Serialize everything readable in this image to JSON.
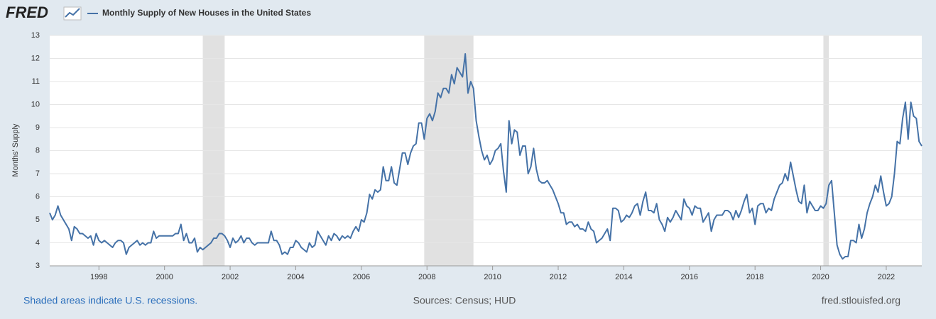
{
  "brand": "FRED",
  "chart_data": {
    "type": "line",
    "y_label": "Months' Supply",
    "series": [
      {
        "name": "Monthly Supply of New Houses in the United States",
        "color": "#4572a7",
        "values": [
          5.3,
          5.0,
          5.2,
          5.6,
          5.2,
          5.0,
          4.8,
          4.6,
          4.1,
          4.7,
          4.6,
          4.4,
          4.4,
          4.3,
          4.2,
          4.3,
          3.9,
          4.4,
          4.1,
          4.0,
          4.1,
          4.0,
          3.9,
          3.8,
          4.0,
          4.1,
          4.1,
          4.0,
          3.5,
          3.8,
          3.9,
          4.0,
          4.1,
          3.9,
          4.0,
          3.9,
          4.0,
          4.0,
          4.5,
          4.2,
          4.3,
          4.3,
          4.3,
          4.3,
          4.3,
          4.3,
          4.4,
          4.4,
          4.8,
          4.1,
          4.4,
          4.0,
          4.0,
          4.2,
          3.6,
          3.8,
          3.7,
          3.8,
          3.9,
          4.0,
          4.2,
          4.2,
          4.4,
          4.4,
          4.3,
          4.1,
          3.8,
          4.2,
          4.0,
          4.1,
          4.3,
          4.0,
          4.2,
          4.2,
          4.0,
          3.9,
          4.0,
          4.0,
          4.0,
          4.0,
          4.0,
          4.5,
          4.1,
          4.1,
          3.9,
          3.5,
          3.6,
          3.5,
          3.8,
          3.8,
          4.1,
          4.0,
          3.8,
          3.7,
          3.6,
          4.0,
          3.8,
          3.9,
          4.5,
          4.3,
          4.1,
          3.9,
          4.3,
          4.1,
          4.4,
          4.3,
          4.1,
          4.3,
          4.2,
          4.3,
          4.2,
          4.5,
          4.7,
          4.5,
          5.0,
          4.9,
          5.3,
          6.1,
          5.9,
          6.3,
          6.2,
          6.3,
          7.3,
          6.7,
          6.7,
          7.3,
          6.6,
          6.5,
          7.2,
          7.9,
          7.9,
          7.4,
          7.9,
          8.2,
          8.3,
          9.2,
          9.2,
          8.5,
          9.4,
          9.6,
          9.3,
          9.7,
          10.5,
          10.3,
          10.7,
          10.7,
          10.5,
          11.3,
          10.9,
          11.6,
          11.4,
          11.2,
          12.2,
          10.5,
          11.0,
          10.7,
          9.3,
          8.6,
          8.0,
          7.6,
          7.8,
          7.4,
          7.6,
          8.0,
          8.1,
          8.3,
          7.1,
          6.2,
          9.3,
          8.3,
          8.9,
          8.8,
          7.8,
          8.2,
          8.2,
          7.0,
          7.3,
          8.1,
          7.2,
          6.7,
          6.6,
          6.6,
          6.7,
          6.5,
          6.3,
          6.0,
          5.7,
          5.3,
          5.3,
          4.8,
          4.9,
          4.9,
          4.7,
          4.8,
          4.6,
          4.6,
          4.5,
          4.9,
          4.6,
          4.5,
          4.0,
          4.1,
          4.2,
          4.4,
          4.6,
          4.1,
          5.5,
          5.5,
          5.4,
          4.9,
          5.0,
          5.2,
          5.1,
          5.3,
          5.6,
          5.7,
          5.2,
          5.8,
          6.2,
          5.4,
          5.4,
          5.3,
          5.7,
          5.0,
          4.8,
          4.5,
          5.1,
          4.9,
          5.1,
          5.4,
          5.2,
          5.0,
          5.9,
          5.6,
          5.5,
          5.2,
          5.6,
          5.5,
          5.5,
          4.9,
          5.1,
          5.3,
          4.5,
          5.0,
          5.2,
          5.2,
          5.2,
          5.4,
          5.4,
          5.3,
          5.0,
          5.4,
          5.1,
          5.4,
          5.8,
          6.1,
          5.3,
          5.5,
          4.8,
          5.6,
          5.7,
          5.7,
          5.3,
          5.5,
          5.4,
          5.9,
          6.2,
          6.5,
          6.6,
          7.0,
          6.7,
          7.5,
          6.9,
          6.3,
          5.8,
          5.7,
          6.5,
          5.3,
          5.8,
          5.6,
          5.4,
          5.4,
          5.6,
          5.5,
          5.7,
          6.5,
          6.7,
          5.3,
          3.9,
          3.5,
          3.3,
          3.4,
          3.4,
          4.1,
          4.1,
          4.0,
          4.8,
          4.2,
          4.6,
          5.3,
          5.7,
          6.0,
          6.5,
          6.2,
          6.9,
          6.2,
          5.6,
          5.7,
          6.0,
          7.0,
          8.4,
          8.3,
          9.4,
          10.1,
          8.5,
          10.1,
          9.5,
          9.4,
          8.4,
          8.2
        ]
      }
    ],
    "x": [
      "1996-07",
      "1996-08",
      "1996-09",
      "1996-10",
      "1996-11",
      "1996-12",
      "1997-01",
      "1997-02",
      "1997-03",
      "1997-04",
      "1997-05",
      "1997-06",
      "1997-07",
      "1997-08",
      "1997-09",
      "1997-10",
      "1997-11",
      "1997-12",
      "1998-01",
      "1998-02",
      "1998-03",
      "1998-04",
      "1998-05",
      "1998-06",
      "1998-07",
      "1998-08",
      "1998-09",
      "1998-10",
      "1998-11",
      "1998-12",
      "1999-01",
      "1999-02",
      "1999-03",
      "1999-04",
      "1999-05",
      "1999-06",
      "1999-07",
      "1999-08",
      "1999-09",
      "1999-10",
      "1999-11",
      "1999-12",
      "2000-01",
      "2000-02",
      "2000-03",
      "2000-04",
      "2000-05",
      "2000-06",
      "2000-07",
      "2000-08",
      "2000-09",
      "2000-10",
      "2000-11",
      "2000-12",
      "2001-01",
      "2001-02",
      "2001-03",
      "2001-04",
      "2001-05",
      "2001-06",
      "2001-07",
      "2001-08",
      "2001-09",
      "2001-10",
      "2001-11",
      "2001-12",
      "2002-01",
      "2002-02",
      "2002-03",
      "2002-04",
      "2002-05",
      "2002-06",
      "2002-07",
      "2002-08",
      "2002-09",
      "2002-10",
      "2002-11",
      "2002-12",
      "2003-01",
      "2003-02",
      "2003-03",
      "2003-04",
      "2003-05",
      "2003-06",
      "2003-07",
      "2003-08",
      "2003-09",
      "2003-10",
      "2003-11",
      "2003-12",
      "2004-01",
      "2004-02",
      "2004-03",
      "2004-04",
      "2004-05",
      "2004-06",
      "2004-07",
      "2004-08",
      "2004-09",
      "2004-10",
      "2004-11",
      "2004-12",
      "2005-01",
      "2005-02",
      "2005-03",
      "2005-04",
      "2005-05",
      "2005-06",
      "2005-07",
      "2005-08",
      "2005-09",
      "2005-10",
      "2005-11",
      "2005-12",
      "2006-01",
      "2006-02",
      "2006-03",
      "2006-04",
      "2006-05",
      "2006-06",
      "2006-07",
      "2006-08",
      "2006-09",
      "2006-10",
      "2006-11",
      "2006-12",
      "2007-01",
      "2007-02",
      "2007-03",
      "2007-04",
      "2007-05",
      "2007-06",
      "2007-07",
      "2007-08",
      "2007-09",
      "2007-10",
      "2007-11",
      "2007-12",
      "2008-01",
      "2008-02",
      "2008-03",
      "2008-04",
      "2008-05",
      "2008-06",
      "2008-07",
      "2008-08",
      "2008-09",
      "2008-10",
      "2008-11",
      "2008-12",
      "2009-01",
      "2009-02",
      "2009-03",
      "2009-04",
      "2009-05",
      "2009-06",
      "2009-07",
      "2009-08",
      "2009-09",
      "2009-10",
      "2009-11",
      "2009-12",
      "2010-01",
      "2010-02",
      "2010-03",
      "2010-04",
      "2010-05",
      "2010-06",
      "2010-07",
      "2010-08",
      "2010-09",
      "2010-10",
      "2010-11",
      "2010-12",
      "2011-01",
      "2011-02",
      "2011-03",
      "2011-04",
      "2011-05",
      "2011-06",
      "2011-07",
      "2011-08",
      "2011-09",
      "2011-10",
      "2011-11",
      "2011-12",
      "2012-01",
      "2012-02",
      "2012-03",
      "2012-04",
      "2012-05",
      "2012-06",
      "2012-07",
      "2012-08",
      "2012-09",
      "2012-10",
      "2012-11",
      "2012-12",
      "2013-01",
      "2013-02",
      "2013-03",
      "2013-04",
      "2013-05",
      "2013-06",
      "2013-07",
      "2013-08",
      "2013-09",
      "2013-10",
      "2013-11",
      "2013-12",
      "2014-01",
      "2014-02",
      "2014-03",
      "2014-04",
      "2014-05",
      "2014-06",
      "2014-07",
      "2014-08",
      "2014-09",
      "2014-10",
      "2014-11",
      "2014-12",
      "2015-01",
      "2015-02",
      "2015-03",
      "2015-04",
      "2015-05",
      "2015-06",
      "2015-07",
      "2015-08",
      "2015-09",
      "2015-10",
      "2015-11",
      "2015-12",
      "2016-01",
      "2016-02",
      "2016-03",
      "2016-04",
      "2016-05",
      "2016-06",
      "2016-07",
      "2016-08",
      "2016-09",
      "2016-10",
      "2016-11",
      "2016-12",
      "2017-01",
      "2017-02",
      "2017-03",
      "2017-04",
      "2017-05",
      "2017-06",
      "2017-07",
      "2017-08",
      "2017-09",
      "2017-10",
      "2017-11",
      "2017-12",
      "2018-01",
      "2018-02",
      "2018-03",
      "2018-04",
      "2018-05",
      "2018-06",
      "2018-07",
      "2018-08",
      "2018-09",
      "2018-10",
      "2018-11",
      "2018-12",
      "2019-01",
      "2019-02",
      "2019-03",
      "2019-04",
      "2019-05",
      "2019-06",
      "2019-07",
      "2019-08",
      "2019-09",
      "2019-10",
      "2019-11",
      "2019-12",
      "2020-01",
      "2020-02",
      "2020-03",
      "2020-04",
      "2020-05",
      "2020-06",
      "2020-07",
      "2020-08",
      "2020-09",
      "2020-10",
      "2020-11",
      "2020-12",
      "2021-01",
      "2021-02",
      "2021-03",
      "2021-04",
      "2021-05",
      "2021-06",
      "2021-07",
      "2021-08",
      "2021-09",
      "2021-10",
      "2021-11",
      "2021-12",
      "2022-01",
      "2022-02",
      "2022-03",
      "2022-04",
      "2022-05",
      "2022-06",
      "2022-07",
      "2022-08",
      "2022-09",
      "2022-10",
      "2022-11",
      "2022-12",
      "2023-01",
      "2023-02"
    ],
    "xlim": [
      "1996-07",
      "2023-02"
    ],
    "xticks": [
      "1998",
      "2000",
      "2002",
      "2004",
      "2006",
      "2008",
      "2010",
      "2012",
      "2014",
      "2016",
      "2018",
      "2020",
      "2022"
    ],
    "ylim": [
      3,
      13
    ],
    "yticks": [
      3,
      4,
      5,
      6,
      7,
      8,
      9,
      10,
      11,
      12,
      13
    ],
    "grid": true,
    "recessions": [
      [
        "2001-03",
        "2001-11"
      ],
      [
        "2007-12",
        "2009-06"
      ],
      [
        "2020-02",
        "2020-04"
      ]
    ],
    "recession_color": "#e1e1e1"
  },
  "footer": {
    "left": "Shaded areas indicate U.S. recessions.",
    "center": "Sources: Census; HUD",
    "right": "fred.stlouisfed.org"
  }
}
